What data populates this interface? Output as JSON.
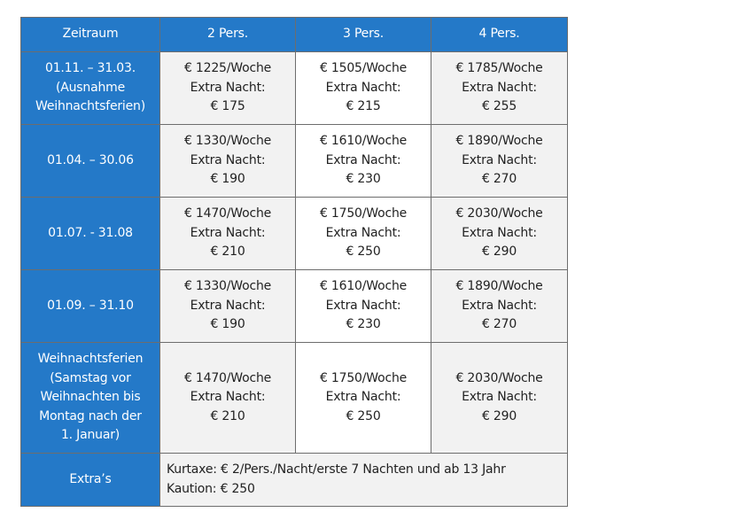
{
  "headers": [
    "Zeitraum",
    "2 Pers.",
    "3 Pers.",
    "4 Pers."
  ],
  "rows": [
    {
      "period": [
        "01.11. – 31.03.",
        "(Ausnahme",
        "Weihnachtsferien)"
      ],
      "cells": [
        [
          "€ 1225/Woche",
          "Extra Nacht:",
          "€ 175"
        ],
        [
          "€ 1505/Woche",
          "Extra Nacht:",
          "€ 215"
        ],
        [
          "€ 1785/Woche",
          "Extra Nacht:",
          "€ 255"
        ]
      ]
    },
    {
      "period": [
        "01.04. – 30.06"
      ],
      "cells": [
        [
          "€ 1330/Woche",
          "Extra Nacht:",
          "€ 190"
        ],
        [
          "€ 1610/Woche",
          "Extra Nacht:",
          "€ 230"
        ],
        [
          "€ 1890/Woche",
          "Extra Nacht:",
          "€ 270"
        ]
      ]
    },
    {
      "period": [
        "01.07. - 31.08"
      ],
      "cells": [
        [
          "€ 1470/Woche",
          "Extra Nacht:",
          "€ 210"
        ],
        [
          "€ 1750/Woche",
          "Extra Nacht:",
          "€ 250"
        ],
        [
          "€ 2030/Woche",
          "Extra Nacht:",
          "€ 290"
        ]
      ]
    },
    {
      "period": [
        "01.09. – 31.10"
      ],
      "cells": [
        [
          "€ 1330/Woche",
          "Extra Nacht:",
          "€ 190"
        ],
        [
          "€ 1610/Woche",
          "Extra Nacht:",
          "€ 230"
        ],
        [
          "€ 1890/Woche",
          "Extra Nacht:",
          "€ 270"
        ]
      ]
    },
    {
      "period": [
        "Weihnachtsferien",
        "(Samstag vor",
        "Weihnachten bis",
        "Montag nach der",
        "1. Januar)"
      ],
      "cells": [
        [
          "€ 1470/Woche",
          "Extra Nacht:",
          "€ 210"
        ],
        [
          "€ 1750/Woche",
          "Extra Nacht:",
          "€ 250"
        ],
        [
          "€ 2030/Woche",
          "Extra Nacht:",
          "€ 290"
        ]
      ]
    }
  ],
  "extras": {
    "label": "Extra’s",
    "lines": [
      "Kurtaxe: € 2/Pers./Nacht/erste 7 Nachten und ab 13 Jahr",
      "Kaution: € 250"
    ]
  },
  "colors": {
    "header_blue": "#2479c8",
    "cell_gray": "#f2f2f2"
  }
}
